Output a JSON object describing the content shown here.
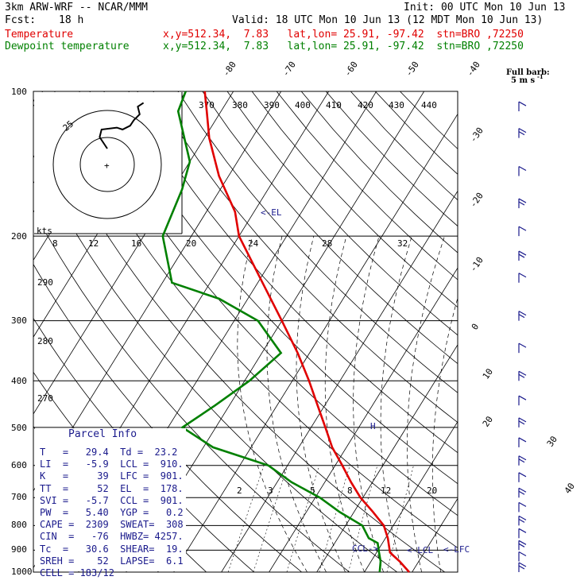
{
  "header": {
    "model": "3km ARW-WRF -- NCAR/MMM",
    "init": "Init: 00 UTC Mon 10 Jun 13",
    "fcst_label": "Fcst:",
    "fcst_value": "18 h",
    "valid": "Valid: 18 UTC Mon 10 Jun 13 (12 MDT Mon 10 Jun 13)",
    "temp_label": "Temperature",
    "temp_loc": "x,y=512.34,  7.83   lat,lon= 25.91, -97.42  stn=BRO ,72250",
    "dew_label": "Dewpoint temperature",
    "dew_loc": "x,y=512.34,  7.83   lat,lon= 25.91, -97.42  stn=BRO ,72250",
    "barb_title": "Full barb:",
    "barb_unit": "5 m s",
    "barb_exp": "-1"
  },
  "parcel_info": {
    "title": "Parcel Info",
    "rows": [
      "T   =   29.4  Td =  23.2",
      "LI  =   -5.9  LCL =  910.",
      "K   =     39  LFC =  901.",
      "TT  =     52  EL  =  178.",
      "SVI =   -5.7  CCL =  901.",
      "PW  =   5.40  YGP =   0.2",
      "CAPE =  2309  SWEAT=  308",
      "CIN  =   -76  HWBZ= 4257.",
      "Tc  =   30.6  SHEAR=  19.",
      "SREH =    52  LAPSE=  6.1",
      "CELL = 183/12"
    ]
  },
  "hodograph": {
    "ring_label": "25",
    "units_label": "kts",
    "center_symbol": "+",
    "points": [
      [
        0,
        0
      ],
      [
        -4,
        6
      ],
      [
        -3,
        10
      ],
      [
        5,
        11
      ],
      [
        8,
        10
      ],
      [
        12,
        12
      ],
      [
        14,
        15
      ],
      [
        17,
        18
      ],
      [
        16,
        22
      ],
      [
        19,
        24
      ]
    ]
  },
  "chart_data": {
    "type": "line",
    "title": "Skew-T log-P sounding",
    "pressure_ticks": [
      "100",
      "200",
      "300",
      "400",
      "500",
      "600",
      "700",
      "800",
      "900",
      "1000"
    ],
    "isotherm_top_labels": [
      "-80",
      "-70",
      "-60",
      "-50",
      "-40"
    ],
    "isotherm_right_labels": [
      "-30",
      "-20",
      "-10",
      "0",
      "10",
      "20",
      "30",
      "40"
    ],
    "theta_labels": [
      "370",
      "380",
      "390",
      "400",
      "410",
      "420",
      "430",
      "440"
    ],
    "theta_e_labels": [
      "290",
      "280",
      "270"
    ],
    "theta_e_top_labels": [
      "8",
      "12",
      "16",
      "20",
      "24",
      "28",
      "32"
    ],
    "mixing_ratio_labels": [
      "2",
      "3",
      "5",
      "8",
      "12",
      "20"
    ],
    "annotations": {
      "el": "<-EL",
      "ccl": "CCL->",
      "lcl": "<-LCL",
      "lfc": "<-LFC",
      "freezing": "H"
    },
    "series": [
      {
        "name": "Temperature",
        "color": "#e00000",
        "points": [
          [
            1000,
            29.4
          ],
          [
            950,
            26.0
          ],
          [
            925,
            24.0
          ],
          [
            910,
            22.8
          ],
          [
            850,
            20.5
          ],
          [
            800,
            18.0
          ],
          [
            750,
            14.0
          ],
          [
            700,
            9.5
          ],
          [
            650,
            5.5
          ],
          [
            600,
            1.5
          ],
          [
            550,
            -3.0
          ],
          [
            500,
            -7.0
          ],
          [
            450,
            -11.5
          ],
          [
            400,
            -16.5
          ],
          [
            350,
            -22.5
          ],
          [
            300,
            -30.0
          ],
          [
            250,
            -39.0
          ],
          [
            200,
            -50.0
          ],
          [
            178,
            -54.0
          ],
          [
            150,
            -62.0
          ],
          [
            125,
            -69.0
          ],
          [
            110,
            -73.0
          ],
          [
            100,
            -76.0
          ]
        ]
      },
      {
        "name": "Dewpoint temperature",
        "color": "#008000",
        "points": [
          [
            1000,
            23.2
          ],
          [
            950,
            22.0
          ],
          [
            910,
            20.5
          ],
          [
            870,
            19.0
          ],
          [
            850,
            16.5
          ],
          [
            800,
            13.5
          ],
          [
            750,
            7.0
          ],
          [
            700,
            1.0
          ],
          [
            650,
            -7.0
          ],
          [
            600,
            -14.0
          ],
          [
            550,
            -28.0
          ],
          [
            500,
            -37.0
          ],
          [
            450,
            -33.0
          ],
          [
            400,
            -29.0
          ],
          [
            350,
            -26.0
          ],
          [
            300,
            -35.0
          ],
          [
            270,
            -46.0
          ],
          [
            250,
            -58.0
          ],
          [
            200,
            -66.0
          ],
          [
            160,
            -68.0
          ],
          [
            140,
            -70.0
          ],
          [
            110,
            -79.0
          ],
          [
            100,
            -80.0
          ]
        ]
      }
    ],
    "wind_levels": [
      1000,
      950,
      900,
      850,
      800,
      750,
      700,
      650,
      600,
      550,
      500,
      450,
      400,
      350,
      300,
      250,
      225,
      200,
      175,
      150,
      125,
      110
    ]
  }
}
